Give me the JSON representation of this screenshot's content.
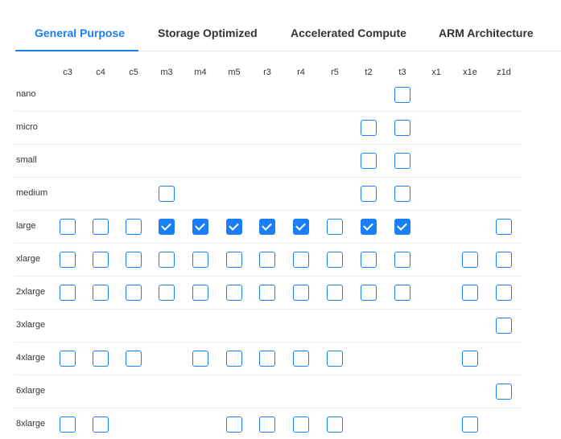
{
  "tabs": [
    {
      "label": "General Purpose",
      "active": true
    },
    {
      "label": "Storage Optimized",
      "active": false
    },
    {
      "label": "Accelerated Compute",
      "active": false
    },
    {
      "label": "ARM Architecture",
      "active": false
    }
  ],
  "accent": "#1a7ff5",
  "columns": [
    "c3",
    "c4",
    "c5",
    "m3",
    "m4",
    "m5",
    "r3",
    "r4",
    "r5",
    "t2",
    "t3",
    "x1",
    "x1e",
    "z1d"
  ],
  "rows": [
    {
      "label": "nano",
      "cells": {
        "t3": false
      }
    },
    {
      "label": "micro",
      "cells": {
        "t2": false,
        "t3": false
      }
    },
    {
      "label": "small",
      "cells": {
        "t2": false,
        "t3": false
      }
    },
    {
      "label": "medium",
      "cells": {
        "m3": false,
        "t2": false,
        "t3": false
      }
    },
    {
      "label": "large",
      "cells": {
        "c3": false,
        "c4": false,
        "c5": false,
        "m3": true,
        "m4": true,
        "m5": true,
        "r3": true,
        "r4": true,
        "r5": false,
        "t2": true,
        "t3": true,
        "z1d": false
      }
    },
    {
      "label": "xlarge",
      "cells": {
        "c3": false,
        "c4": false,
        "c5": false,
        "m3": false,
        "m4": false,
        "m5": false,
        "r3": false,
        "r4": false,
        "r5": false,
        "t2": false,
        "t3": false,
        "x1e": false,
        "z1d": false
      }
    },
    {
      "label": "2xlarge",
      "cells": {
        "c3": false,
        "c4": false,
        "c5": false,
        "m3": false,
        "m4": false,
        "m5": false,
        "r3": false,
        "r4": false,
        "r5": false,
        "t2": false,
        "t3": false,
        "x1e": false,
        "z1d": false
      }
    },
    {
      "label": "3xlarge",
      "cells": {
        "z1d": false
      }
    },
    {
      "label": "4xlarge",
      "cells": {
        "c3": false,
        "c4": false,
        "c5": false,
        "m4": false,
        "m5": false,
        "r3": false,
        "r4": false,
        "r5": false,
        "x1e": false
      }
    },
    {
      "label": "6xlarge",
      "cells": {
        "z1d": false
      }
    },
    {
      "label": "8xlarge",
      "cells": {
        "c3": false,
        "c4": false,
        "m5": false,
        "r3": false,
        "r4": false,
        "r5": false,
        "x1e": false
      }
    }
  ]
}
